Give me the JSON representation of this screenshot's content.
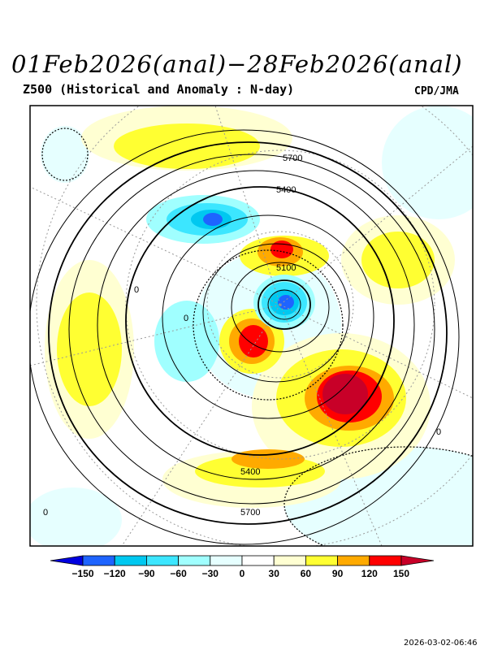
{
  "header": {
    "title": "01Feb2026(anal)−28Feb2026(anal)",
    "subtitle": "Z500 (Historical and Anomaly : N-day)",
    "credit": "CPD/JMA"
  },
  "map": {
    "projection": "north-polar-stereographic",
    "height_contour_labels": [
      "5700",
      "5400",
      "5100",
      "5400",
      "5700"
    ],
    "anomaly_zero_labels": [
      "0",
      "0",
      "0",
      "0"
    ]
  },
  "colorbar": {
    "ticks": [
      "−150",
      "−120",
      "−90",
      "−60",
      "−30",
      "0",
      "30",
      "60",
      "90",
      "120",
      "150"
    ],
    "colors": [
      "#0000e0",
      "#1e64ff",
      "#00c8f0",
      "#3ce6ff",
      "#a0ffff",
      "#e6ffff",
      "#ffffff",
      "#ffffd2",
      "#ffff32",
      "#ffaa00",
      "#ff0000",
      "#c80028"
    ]
  },
  "footer": {
    "timestamp": "2026-03-02-06:46"
  }
}
